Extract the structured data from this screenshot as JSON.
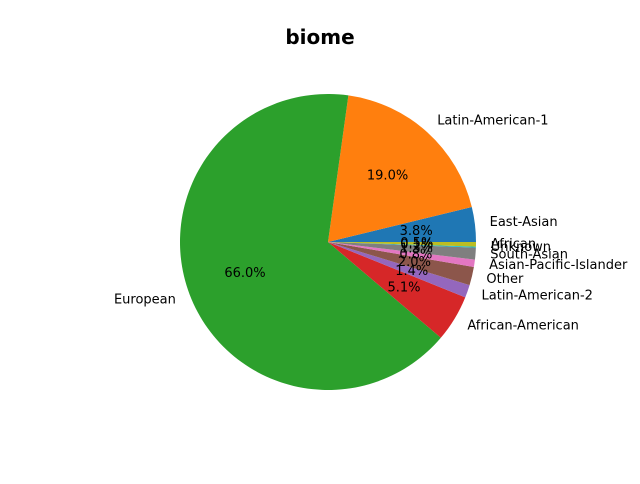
{
  "chart_data": {
    "type": "pie",
    "title": "biome",
    "start_angle_deg": 0,
    "direction": "counterclockwise",
    "slices": [
      {
        "label": "East-Asian",
        "value": 3.8,
        "pct_label": "3.8%",
        "color": "#1f77b4"
      },
      {
        "label": "Latin-American-1",
        "value": 19.0,
        "pct_label": "19.0%",
        "color": "#ff7f0e"
      },
      {
        "label": "European",
        "value": 66.0,
        "pct_label": "66.0%",
        "color": "#2ca02c"
      },
      {
        "label": "African-American",
        "value": 5.1,
        "pct_label": "5.1%",
        "color": "#d62728"
      },
      {
        "label": "Latin-American-2",
        "value": 1.4,
        "pct_label": "1.4%",
        "color": "#9467bd"
      },
      {
        "label": "Other",
        "value": 2.0,
        "pct_label": "2.0%",
        "color": "#8c564b"
      },
      {
        "label": "Asian-Pacific-Islander",
        "value": 0.8,
        "pct_label": "0.8%",
        "color": "#e377c2"
      },
      {
        "label": "South-Asian",
        "value": 1.3,
        "pct_label": "1.3%",
        "color": "#7f7f7f"
      },
      {
        "label": "Unknown",
        "value": 0.1,
        "pct_label": "0.1%",
        "color": "#17becf"
      },
      {
        "label": "African",
        "value": 0.5,
        "pct_label": "0.5%",
        "color": "#bcbd22"
      }
    ]
  }
}
